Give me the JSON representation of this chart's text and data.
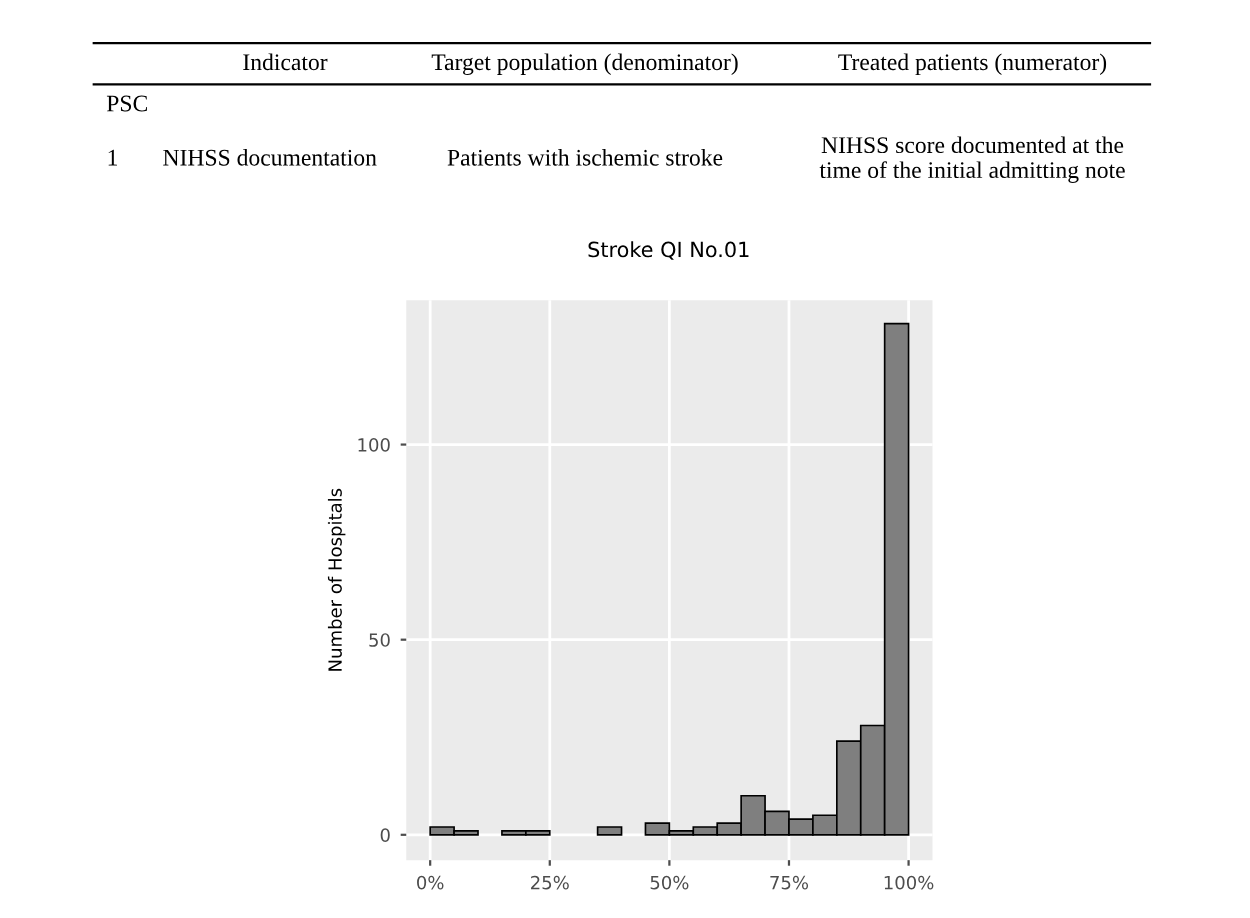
{
  "chart_data": {
    "type": "histogram",
    "title": "Stroke QI No.01",
    "ylabel": "Number of Hospitals",
    "bins": [
      0,
      5,
      10,
      15,
      20,
      25,
      30,
      35,
      40,
      45,
      50,
      55,
      60,
      65,
      70,
      75,
      80,
      85,
      90,
      95,
      100
    ],
    "values": [
      2,
      1,
      0,
      1,
      1,
      0,
      0,
      2,
      0,
      3,
      1,
      2,
      3,
      10,
      6,
      4,
      5,
      24,
      28,
      131
    ],
    "color": "#7f7f7f",
    "xlim": [
      -5,
      105
    ],
    "ylim": [
      -6.5,
      137
    ],
    "xticks": [
      {
        "value": 0,
        "label": "0%"
      },
      {
        "value": 25,
        "label": "25%"
      },
      {
        "value": 50,
        "label": "50%"
      },
      {
        "value": 75,
        "label": "75%"
      },
      {
        "value": 100,
        "label": "100%"
      }
    ],
    "yticks": [
      0,
      50,
      100
    ],
    "grid": true,
    "annotations": [
      "Indicator",
      "Target population (denominator)",
      "Treated patients (numerator)",
      "PSC",
      "1",
      "NIHSS documentation",
      "Patients with ischemic stroke",
      "NIHSS score documented at the\ntime of the initial admitting note"
    ]
  }
}
